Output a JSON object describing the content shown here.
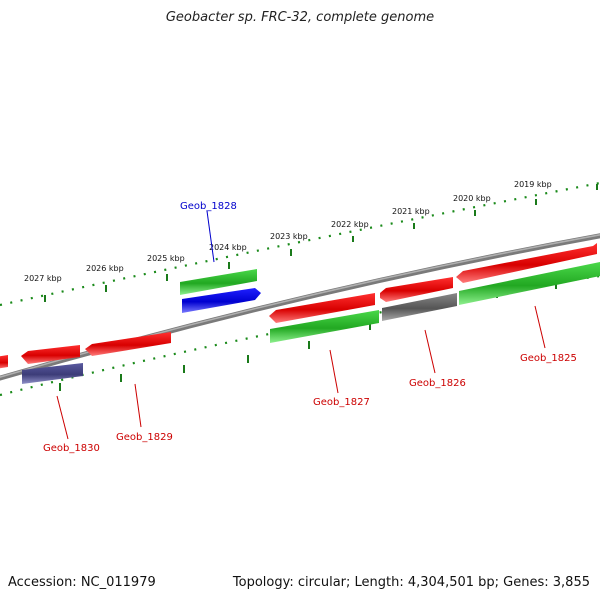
{
  "title": "Geobacter sp. FRC-32, complete genome",
  "footer": {
    "accession": "Accession: NC_011979",
    "summary": "Topology: circular; Length: 4,304,501 bp; Genes: 3,855"
  },
  "ticks": [
    "2019 kbp",
    "2020 kbp",
    "2021 kbp",
    "2022 kbp",
    "2023 kbp",
    "2024 kbp",
    "2025 kbp",
    "2026 kbp",
    "2027 kbp"
  ],
  "genes": [
    {
      "id": "Geob_1825",
      "color": "#cc0000"
    },
    {
      "id": "Geob_1826",
      "color": "#cc0000"
    },
    {
      "id": "Geob_1827",
      "color": "#cc0000"
    },
    {
      "id": "Geob_1828",
      "color": "#0000cc"
    },
    {
      "id": "Geob_1829",
      "color": "#cc0000"
    },
    {
      "id": "Geob_1830",
      "color": "#cc0000"
    }
  ],
  "colors": {
    "cds_red": "#e00000",
    "cds_green": "#2ebd2e",
    "cds_blue": "#0000e0",
    "cds_gray": "#666666",
    "cds_purple": "#4a4a8c",
    "backbone": "#808080",
    "tick_green": "#1a7a1a"
  }
}
